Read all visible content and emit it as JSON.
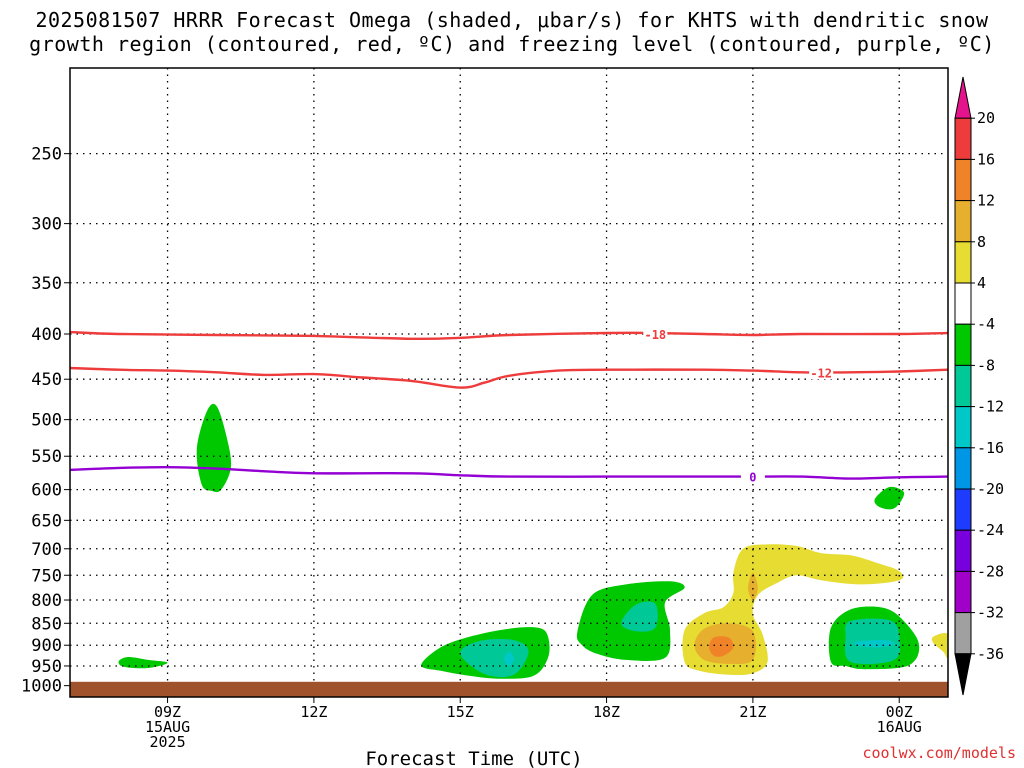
{
  "header": {
    "title_line1": "2025081507 HRRR Forecast Omega (shaded, μbar/s) for KHTS with dendritic snow",
    "title_line2": "growth region (contoured, red, ºC) and freezing level (contoured, purple, ºC)"
  },
  "watermark": "coolwx.com/models",
  "chart_data": {
    "type": "time-height contour",
    "xlabel": "Forecast Time (UTC)",
    "x_ticks": [
      {
        "hour": 9,
        "lines": [
          "09Z",
          "15AUG",
          "2025"
        ]
      },
      {
        "hour": 12,
        "lines": [
          "12Z"
        ]
      },
      {
        "hour": 15,
        "lines": [
          "15Z"
        ]
      },
      {
        "hour": 18,
        "lines": [
          "18Z"
        ]
      },
      {
        "hour": 21,
        "lines": [
          "21Z"
        ]
      },
      {
        "hour": 24,
        "lines": [
          "00Z",
          "16AUG"
        ]
      }
    ],
    "x_range_hours": [
      7,
      25
    ],
    "y_axis": "pressure (hPa), log scale",
    "y_range": [
      1030,
      200
    ],
    "y_ticks": [
      250,
      300,
      350,
      400,
      450,
      500,
      550,
      600,
      650,
      700,
      750,
      800,
      850,
      900,
      950,
      1000
    ],
    "grid": "dotted horizontal and vertical",
    "ground_level_hPa": 990,
    "colors": {
      "ground": "#a0522d",
      "dgz_contour": "#ee3b3b",
      "freezing_contour": "#9400d3",
      "green": "#00c800",
      "teal": "#00c896",
      "cyan": "#00c8c8",
      "yellow": "#e6dc32",
      "orange_light": "#e6af2d",
      "orange": "#f08228"
    },
    "colorbar": {
      "labels": [
        "20",
        "16",
        "12",
        "8",
        "4",
        "-4",
        "-8",
        "-12",
        "-16",
        "-20",
        "-24",
        "-28",
        "-32",
        "-36"
      ],
      "bins": [
        {
          "from": 16,
          "to": 20,
          "color": "#ee3b3b"
        },
        {
          "from": 12,
          "to": 16,
          "color": "#f08228"
        },
        {
          "from": 8,
          "to": 12,
          "color": "#e6af2d"
        },
        {
          "from": 4,
          "to": 8,
          "color": "#e6dc32"
        },
        {
          "from": -4,
          "to": 4,
          "color": "#ffffff"
        },
        {
          "from": -8,
          "to": -4,
          "color": "#00c800"
        },
        {
          "from": -12,
          "to": -8,
          "color": "#00c896"
        },
        {
          "from": -16,
          "to": -12,
          "color": "#00c8c8"
        },
        {
          "from": -20,
          "to": -16,
          "color": "#0096e6"
        },
        {
          "from": -24,
          "to": -20,
          "color": "#1e3cff"
        },
        {
          "from": -28,
          "to": -24,
          "color": "#7800dc"
        },
        {
          "from": -32,
          "to": -28,
          "color": "#a000c8"
        },
        {
          "from": -36,
          "to": -32,
          "color": "#a0a0a0"
        }
      ],
      "top_arrow_color": "#e6148c",
      "bottom_arrow_color": "#000000"
    },
    "contours": [
      {
        "name": "-18",
        "label": "-18",
        "color": "#ee3b3b",
        "label_at": {
          "hour": 19.0,
          "p": 400
        },
        "points": [
          [
            7,
            398
          ],
          [
            8,
            400
          ],
          [
            10,
            401
          ],
          [
            12,
            402
          ],
          [
            14,
            405
          ],
          [
            15,
            404
          ],
          [
            16,
            401
          ],
          [
            18,
            399
          ],
          [
            19,
            399
          ],
          [
            20,
            400
          ],
          [
            21,
            401
          ],
          [
            22,
            400
          ],
          [
            24,
            400
          ],
          [
            25,
            399
          ]
        ]
      },
      {
        "name": "-12",
        "label": "-12",
        "color": "#ee3b3b",
        "label_at": {
          "hour": 22.4,
          "p": 442
        },
        "points": [
          [
            7,
            437
          ],
          [
            8,
            439
          ],
          [
            9,
            440
          ],
          [
            10,
            442
          ],
          [
            11,
            445
          ],
          [
            12,
            444
          ],
          [
            13,
            448
          ],
          [
            14,
            452
          ],
          [
            15,
            460
          ],
          [
            15.5,
            454
          ],
          [
            16,
            446
          ],
          [
            17,
            440
          ],
          [
            18,
            439
          ],
          [
            20,
            439
          ],
          [
            21,
            440
          ],
          [
            22,
            442
          ],
          [
            23,
            442
          ],
          [
            24,
            441
          ],
          [
            25,
            439
          ]
        ]
      },
      {
        "name": "0",
        "label": "0",
        "color": "#9400d3",
        "label_at": {
          "hour": 21.0,
          "p": 580
        },
        "points": [
          [
            7,
            570
          ],
          [
            8,
            567
          ],
          [
            9,
            566
          ],
          [
            10,
            568
          ],
          [
            11,
            572
          ],
          [
            12,
            575
          ],
          [
            14,
            575
          ],
          [
            15,
            578
          ],
          [
            16,
            580
          ],
          [
            18,
            580
          ],
          [
            20,
            580
          ],
          [
            21,
            580
          ],
          [
            22,
            580
          ],
          [
            23,
            583
          ],
          [
            24,
            581
          ],
          [
            25,
            580
          ]
        ]
      }
    ],
    "omega_regions": [
      {
        "value": -6,
        "color": "#00c800",
        "points": [
          [
            9.7,
            592
          ],
          [
            9.6,
            540
          ],
          [
            9.8,
            490
          ],
          [
            10.0,
            482
          ],
          [
            10.2,
            520
          ],
          [
            10.3,
            565
          ],
          [
            10.1,
            600
          ],
          [
            9.9,
            602
          ]
        ]
      },
      {
        "value": -6,
        "color": "#00c800",
        "points": [
          [
            8.0,
            938
          ],
          [
            8.2,
            928
          ],
          [
            8.6,
            935
          ],
          [
            9.0,
            942
          ],
          [
            8.6,
            955
          ],
          [
            8.1,
            952
          ]
        ]
      },
      {
        "value": -6,
        "color": "#00c800",
        "points": [
          [
            23.5,
            615
          ],
          [
            23.8,
            596
          ],
          [
            24.1,
            605
          ],
          [
            23.9,
            630
          ],
          [
            23.6,
            628
          ]
        ]
      },
      {
        "value": -6,
        "color": "#00c800",
        "points": [
          [
            14.2,
            948
          ],
          [
            14.6,
            905
          ],
          [
            15.2,
            880
          ],
          [
            16.0,
            862
          ],
          [
            16.6,
            860
          ],
          [
            16.8,
            880
          ],
          [
            16.8,
            930
          ],
          [
            16.5,
            975
          ],
          [
            15.8,
            982
          ],
          [
            15.2,
            975
          ],
          [
            14.6,
            962
          ]
        ]
      },
      {
        "value": -10,
        "color": "#00c896",
        "points": [
          [
            15.0,
            920
          ],
          [
            15.4,
            890
          ],
          [
            16.1,
            888
          ],
          [
            16.4,
            915
          ],
          [
            16.1,
            972
          ],
          [
            15.5,
            970
          ]
        ]
      },
      {
        "value": -14,
        "color": "#00c8c8",
        "points": [
          [
            15.9,
            932
          ],
          [
            16.0,
            915
          ],
          [
            16.1,
            932
          ],
          [
            16.0,
            950
          ]
        ]
      },
      {
        "value": -6,
        "color": "#00c800",
        "points": [
          [
            17.4,
            870
          ],
          [
            17.7,
            790
          ],
          [
            18.4,
            768
          ],
          [
            19.3,
            762
          ],
          [
            19.6,
            775
          ],
          [
            19.2,
            805
          ],
          [
            19.3,
            865
          ],
          [
            19.2,
            930
          ],
          [
            18.4,
            935
          ],
          [
            17.8,
            920
          ],
          [
            17.5,
            900
          ]
        ]
      },
      {
        "value": -10,
        "color": "#00c896",
        "points": [
          [
            18.3,
            850
          ],
          [
            18.6,
            810
          ],
          [
            19.0,
            808
          ],
          [
            19.0,
            860
          ],
          [
            18.6,
            868
          ]
        ]
      },
      {
        "value": -6,
        "color": "#00c800",
        "points": [
          [
            22.6,
            940
          ],
          [
            22.6,
            860
          ],
          [
            23.0,
            820
          ],
          [
            23.6,
            815
          ],
          [
            24.0,
            835
          ],
          [
            24.4,
            895
          ],
          [
            24.2,
            948
          ],
          [
            23.3,
            958
          ],
          [
            22.9,
            950
          ]
        ]
      },
      {
        "value": -10,
        "color": "#00c896",
        "points": [
          [
            22.9,
            880
          ],
          [
            23.0,
            845
          ],
          [
            23.8,
            843
          ],
          [
            24.0,
            878
          ],
          [
            23.9,
            935
          ],
          [
            23.0,
            940
          ]
        ]
      },
      {
        "value": -14,
        "color": "#00c8c8",
        "points": [
          [
            23.1,
            892
          ],
          [
            23.7,
            888
          ],
          [
            23.9,
            898
          ],
          [
            23.6,
            905
          ],
          [
            23.2,
            902
          ]
        ]
      },
      {
        "value": 6,
        "color": "#e6dc32",
        "points": [
          [
            19.6,
            940
          ],
          [
            19.6,
            865
          ],
          [
            20.0,
            828
          ],
          [
            20.4,
            815
          ],
          [
            20.6,
            785
          ],
          [
            20.6,
            745
          ],
          [
            20.8,
            700
          ],
          [
            21.3,
            692
          ],
          [
            21.9,
            695
          ],
          [
            22.4,
            708
          ],
          [
            23.0,
            712
          ],
          [
            23.5,
            725
          ],
          [
            24.0,
            742
          ],
          [
            24.0,
            760
          ],
          [
            23.2,
            768
          ],
          [
            22.4,
            760
          ],
          [
            21.9,
            750
          ],
          [
            21.5,
            765
          ],
          [
            21.1,
            790
          ],
          [
            21.0,
            830
          ],
          [
            21.2,
            875
          ],
          [
            21.3,
            940
          ],
          [
            21.0,
            968
          ],
          [
            20.5,
            972
          ],
          [
            19.9,
            962
          ]
        ]
      },
      {
        "value": 10,
        "color": "#e6af2d",
        "points": [
          [
            19.8,
            900
          ],
          [
            20.0,
            862
          ],
          [
            20.5,
            850
          ],
          [
            21.0,
            868
          ],
          [
            21.0,
            935
          ],
          [
            20.5,
            945
          ],
          [
            20.0,
            935
          ]
        ]
      },
      {
        "value": 14,
        "color": "#f08228",
        "points": [
          [
            20.1,
            905
          ],
          [
            20.2,
            882
          ],
          [
            20.5,
            882
          ],
          [
            20.6,
            905
          ],
          [
            20.4,
            925
          ],
          [
            20.2,
            925
          ]
        ]
      },
      {
        "value": 10,
        "color": "#e6af2d",
        "points": [
          [
            20.9,
            775
          ],
          [
            21.0,
            745
          ],
          [
            21.1,
            775
          ],
          [
            21.0,
            800
          ]
        ]
      },
      {
        "value": 6,
        "color": "#e6dc32",
        "points": [
          [
            24.7,
            880
          ],
          [
            25.0,
            875
          ],
          [
            25.0,
            930
          ],
          [
            24.9,
            915
          ],
          [
            24.7,
            895
          ]
        ]
      }
    ]
  }
}
